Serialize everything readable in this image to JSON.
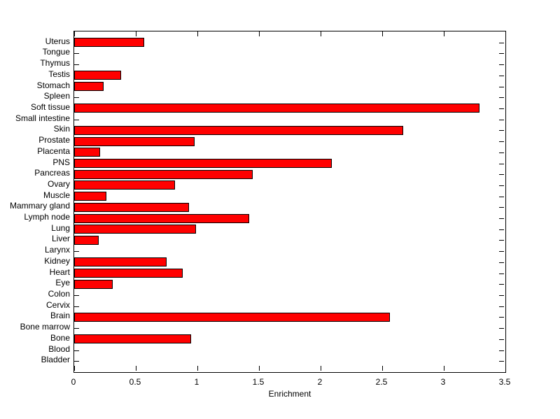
{
  "figure": {
    "background_color": "#ffffff",
    "text_color": "#000000",
    "axis_color": "#000000"
  },
  "chart_data": {
    "type": "bar",
    "orientation": "horizontal",
    "title": "",
    "xlabel": "Enrichment",
    "ylabel": "",
    "xlim": [
      0,
      3.5
    ],
    "x_tick_values": [
      0,
      0.5,
      1,
      1.5,
      2,
      2.5,
      3,
      3.5
    ],
    "x_tick_labels": [
      "0",
      "0.5",
      "1",
      "1.5",
      "2",
      "2.5",
      "3",
      "3.5"
    ],
    "grid": false,
    "legend": "none",
    "bar_color": "#ff0000",
    "bar_edge_color": "#000000",
    "categories": [
      "Uterus",
      "Tongue",
      "Thymus",
      "Testis",
      "Stomach",
      "Spleen",
      "Soft tissue",
      "Small intestine",
      "Skin",
      "Prostate",
      "Placenta",
      "PNS",
      "Pancreas",
      "Ovary",
      "Muscle",
      "Mammary gland",
      "Lymph node",
      "Lung",
      "Liver",
      "Larynx",
      "Kidney",
      "Heart",
      "Eye",
      "Colon",
      "Cervix",
      "Brain",
      "Bone marrow",
      "Bone",
      "Blood",
      "Bladder"
    ],
    "values": [
      0.57,
      0,
      0,
      0.38,
      0.24,
      0,
      3.29,
      0,
      2.67,
      0.98,
      0.21,
      2.09,
      1.45,
      0.82,
      0.26,
      0.93,
      1.42,
      0.99,
      0.2,
      0,
      0.75,
      0.88,
      0.31,
      0,
      0,
      2.56,
      0,
      0.95,
      0,
      0
    ]
  }
}
